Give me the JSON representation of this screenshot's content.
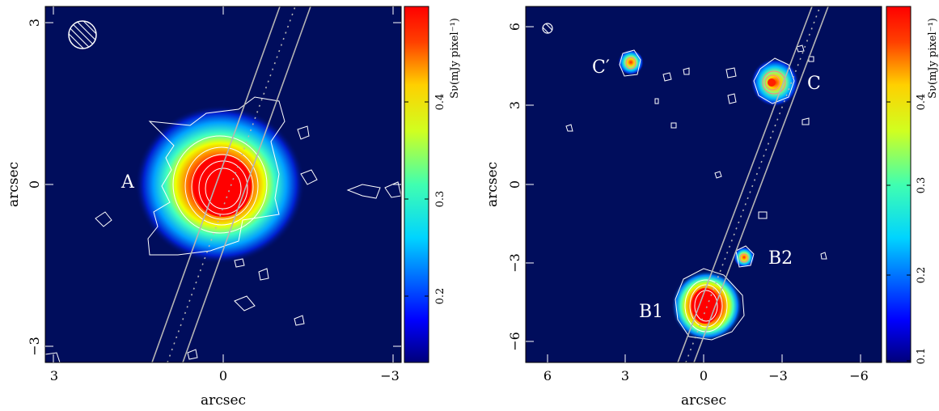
{
  "panels": [
    {
      "xlabel": "arcsec",
      "ylabel": "arcsec",
      "xticks": [
        "3",
        "0",
        "−3"
      ],
      "yticks": [
        "3",
        "0",
        "−3"
      ],
      "sources": [
        "A"
      ],
      "colorbar": {
        "label": "Sν(mJy pixel⁻¹)",
        "ticks": [
          "0.4",
          "0.3",
          "0.2"
        ]
      }
    },
    {
      "xlabel": "arcsec",
      "ylabel": "arcsec",
      "xticks": [
        "6",
        "3",
        "0",
        "−3",
        "−6"
      ],
      "yticks": [
        "6",
        "3",
        "0",
        "−3",
        "−6"
      ],
      "sources": [
        "C′",
        "C",
        "B2",
        "B1"
      ],
      "colorbar": {
        "label": "Sν(mJy pixel⁻¹)",
        "ticks": [
          "0.4",
          "0.3",
          "0.2",
          "0.1"
        ]
      }
    }
  ],
  "colors": {
    "background": "#000d5c",
    "contour": "#ffffff",
    "inner_contour": "#ff6b6b",
    "slit": "#b4b4b4"
  }
}
